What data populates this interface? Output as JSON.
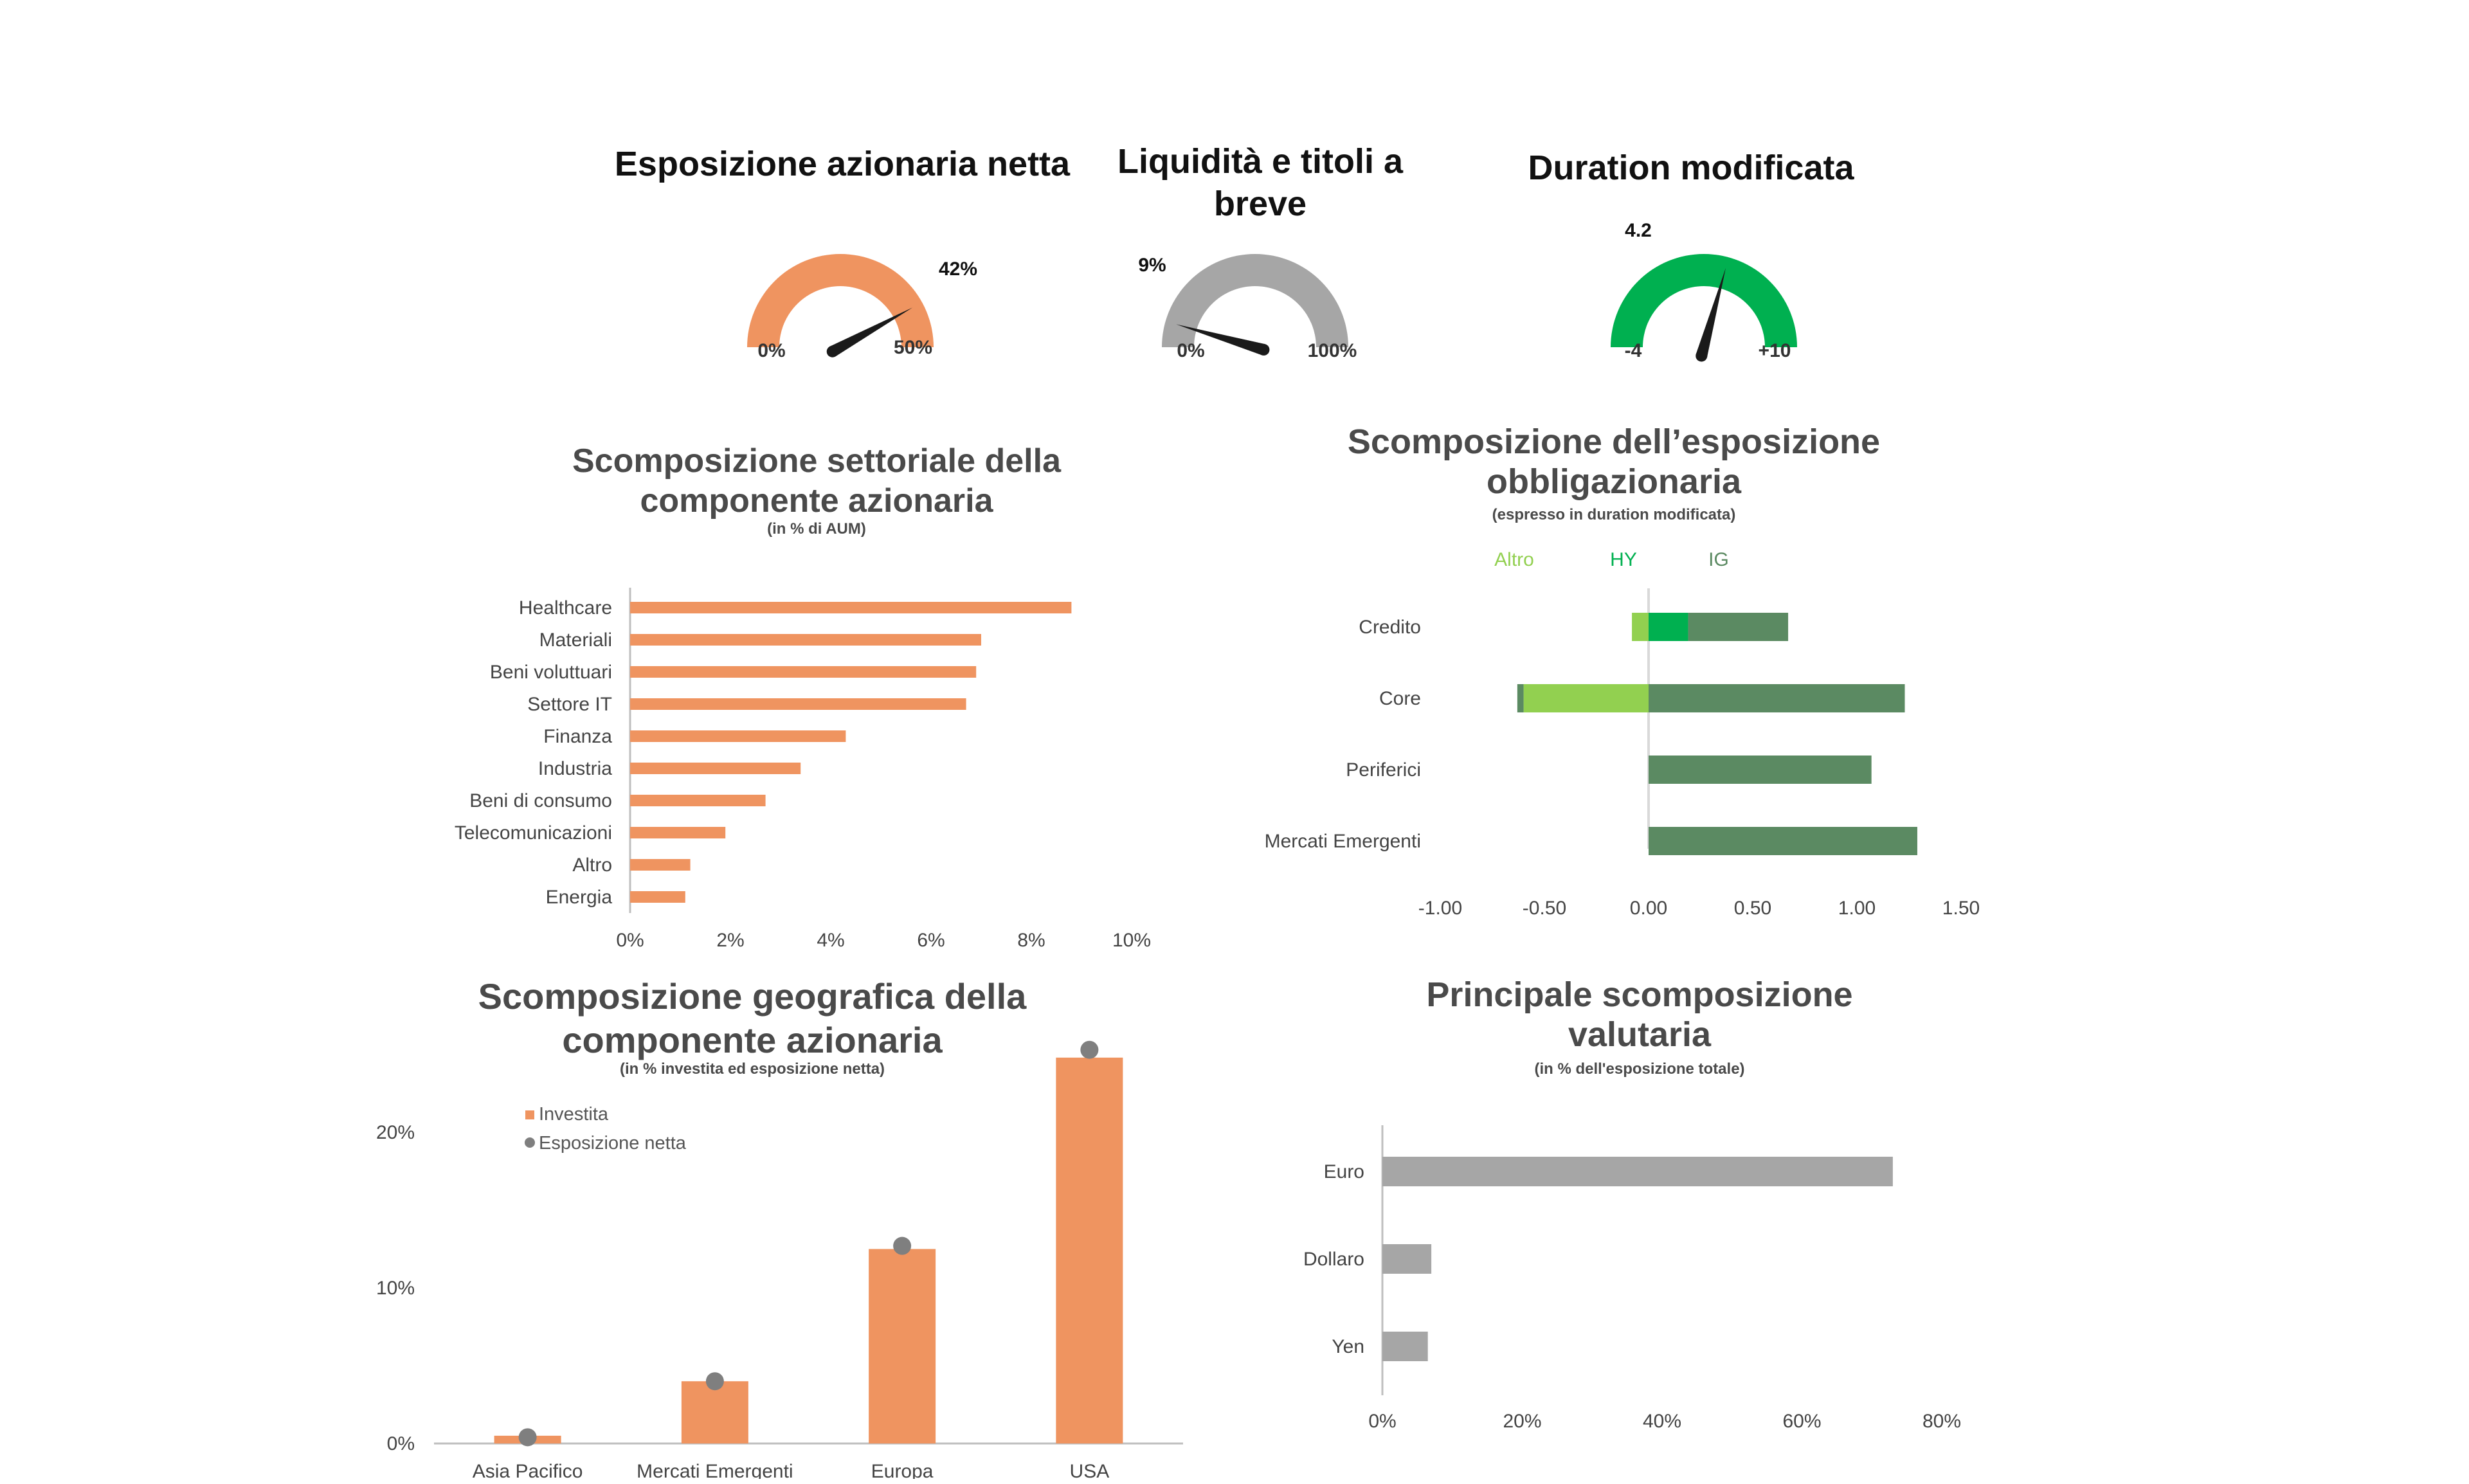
{
  "gauges": [
    {
      "title": "Esposizione azionaria netta",
      "value_label": "42%",
      "min_label": "0%",
      "max_label": "50%",
      "value": 42,
      "min": 0,
      "max": 50,
      "color": "#ef9460"
    },
    {
      "title": "Liquidità e titoli a breve",
      "value_label": "9%",
      "min_label": "0%",
      "max_label": "100%",
      "value": 9,
      "min": 0,
      "max": 100,
      "color": "#a6a6a6"
    },
    {
      "title": "Duration modificata",
      "value_label": "4.2",
      "min_label": "-4",
      "max_label": "+10",
      "value": 4.2,
      "min": -4,
      "max": 10,
      "color": "#00b050"
    }
  ],
  "sector": {
    "title": "Scomposizione settoriale della componente azionaria",
    "subtitle": "(in % di AUM)"
  },
  "bonds": {
    "title": "Scomposizione dell’esposizione obbligazionaria",
    "subtitle": "(espresso in duration modificata)"
  },
  "geo": {
    "title": "Scomposizione geografica della componente azionaria",
    "subtitle": "(in % investita ed esposizione netta)"
  },
  "fx": {
    "title": "Principale scomposizione valutaria",
    "subtitle": "(in % dell'esposizione totale)"
  },
  "chart_data": [
    {
      "type": "bar",
      "orientation": "horizontal",
      "categories": [
        "Healthcare",
        "Materiali",
        "Beni voluttuari",
        "Settore IT",
        "Finanza",
        "Industria",
        "Beni di consumo",
        "Telecomunicazioni",
        "Altro",
        "Energia"
      ],
      "values": [
        8.8,
        7.0,
        6.9,
        6.7,
        4.3,
        3.4,
        2.7,
        1.9,
        1.2,
        1.1
      ],
      "xlim": [
        0,
        10
      ],
      "xticks": [
        "0%",
        "2%",
        "4%",
        "6%",
        "8%",
        "10%"
      ],
      "color": "#ef9460"
    },
    {
      "type": "bar",
      "orientation": "horizontal",
      "stacked": true,
      "categories": [
        "Credito",
        "Core",
        "Periferici",
        "Mercati Emergenti"
      ],
      "series": [
        {
          "name": "Altro",
          "values": [
            -0.08,
            -0.6,
            0,
            0
          ],
          "color": "#92d050"
        },
        {
          "name": "HY",
          "values": [
            0.19,
            -0.03,
            0,
            0
          ],
          "color": "#00b050"
        },
        {
          "name": "IG",
          "values": [
            0.48,
            1.23,
            1.07,
            1.29
          ],
          "color": "#5b8a62"
        }
      ],
      "xlim": [
        -1.0,
        1.5
      ],
      "xticks": [
        "-1.00",
        "-0.50",
        "0.00",
        "0.50",
        "1.00",
        "1.50"
      ]
    },
    {
      "type": "bar",
      "categories": [
        "Asia Pacifico",
        "Mercati Emergenti",
        "Europa",
        "USA"
      ],
      "series": [
        {
          "name": "Investita",
          "values": [
            0.5,
            4.0,
            12.5,
            24.8
          ],
          "color": "#ef9460"
        },
        {
          "name": "Esposizione netta",
          "values": [
            0.4,
            4.0,
            12.7,
            25.3
          ],
          "color": "#7f7f7f"
        }
      ],
      "ylim": [
        0,
        25
      ],
      "yticks": [
        "0%",
        "10%",
        "20%"
      ]
    },
    {
      "type": "bar",
      "orientation": "horizontal",
      "categories": [
        "Euro",
        "Dollaro",
        "Yen"
      ],
      "values": [
        73,
        7,
        6.5
      ],
      "xlim": [
        0,
        80
      ],
      "xticks": [
        "0%",
        "20%",
        "40%",
        "60%",
        "80%"
      ],
      "color": "#a6a6a6"
    }
  ]
}
